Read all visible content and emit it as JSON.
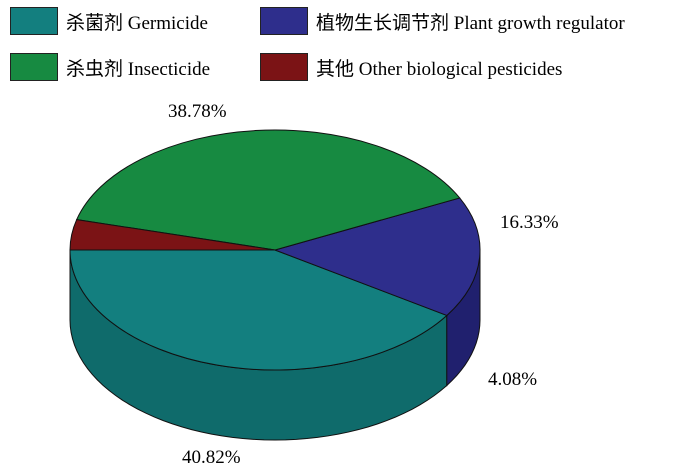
{
  "chart_data": {
    "type": "pie",
    "style": "3d",
    "title": "",
    "legend_position": "top",
    "categories": [
      "杀菌剂 Germicide",
      "植物生长调节剂 Plant growth regulator",
      "杀虫剂 Insecticide",
      "其他 Other biological pesticides"
    ],
    "values": [
      40.82,
      16.33,
      38.78,
      4.08
    ],
    "labels": [
      "40.82%",
      "16.33%",
      "38.78%",
      "4.08%"
    ],
    "colors": [
      "#137f7f",
      "#2e2e8c",
      "#178a41",
      "#7b1315"
    ],
    "side_colors": [
      "#0f6b6b",
      "#20206e",
      "#116a32",
      "#5e0e10"
    ]
  }
}
